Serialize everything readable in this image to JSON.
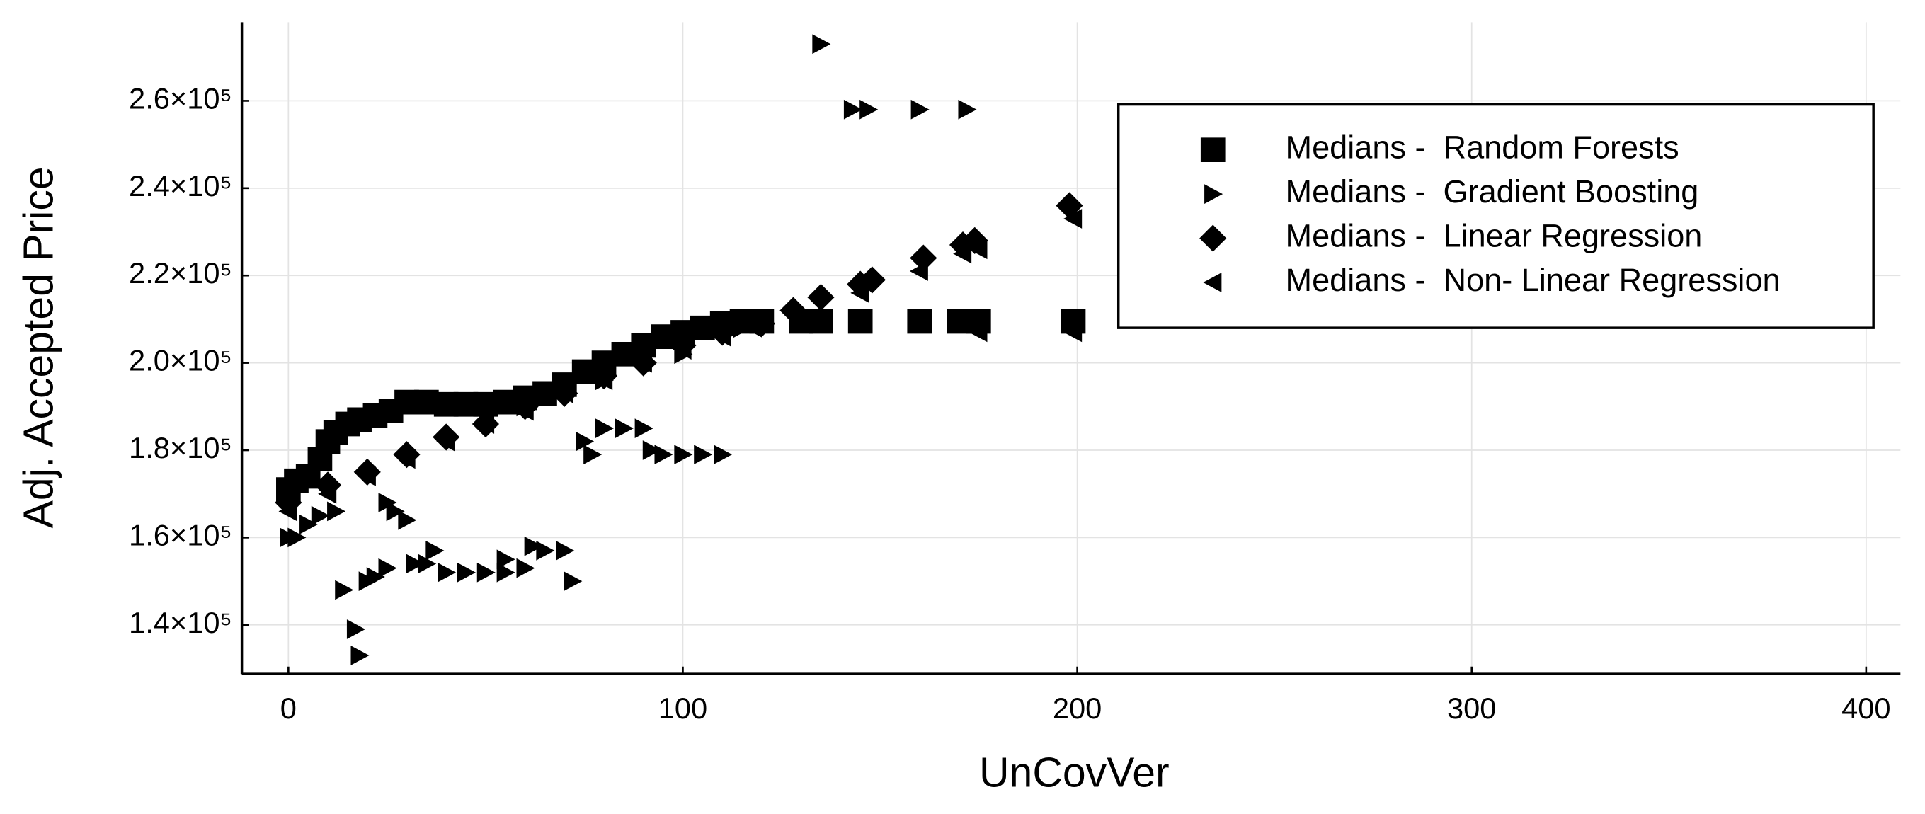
{
  "chart_data": {
    "type": "scatter",
    "xlabel": "UnCovVer",
    "ylabel": "Adj. Accepted Price",
    "xlim": [
      -11.8,
      408.7
    ],
    "xticks": [
      0,
      100,
      200,
      300,
      400
    ],
    "ylim": [
      128760,
      278000
    ],
    "yticks": [
      {
        "value": 140000,
        "label": "1.4×10⁵"
      },
      {
        "value": 160000,
        "label": "1.6×10⁵"
      },
      {
        "value": 180000,
        "label": "1.8×10⁵"
      },
      {
        "value": 200000,
        "label": "2.0×10⁵"
      },
      {
        "value": 220000,
        "label": "2.2×10⁵"
      },
      {
        "value": 240000,
        "label": "2.4×10⁵"
      },
      {
        "value": 260000,
        "label": "2.6×10⁵"
      }
    ],
    "grid": true,
    "legend": "upper right",
    "series": [
      {
        "name": "Medians -  Random Forests",
        "color": "#000000",
        "marker": "square",
        "x": [
          0,
          2,
          5,
          8,
          10,
          12,
          15,
          18,
          22,
          26,
          30,
          35,
          40,
          45,
          50,
          55,
          60,
          65,
          70,
          75,
          80,
          85,
          90,
          95,
          100,
          105,
          110,
          115,
          120,
          130,
          135,
          145,
          160,
          170,
          175,
          199
        ],
        "values": [
          171000,
          173000,
          174000,
          178000,
          182000,
          184000,
          186000,
          187000,
          188000,
          189000,
          191000,
          191000,
          190500,
          190500,
          190500,
          191000,
          192000,
          193000,
          195000,
          198000,
          200000,
          202000,
          204000,
          206000,
          207000,
          208000,
          209000,
          209500,
          209500,
          209500,
          209500,
          209500,
          209500,
          209500,
          209500,
          209500
        ]
      },
      {
        "name": "Medians -  Gradient Boosting",
        "color": "#000000",
        "marker": "triangle-right",
        "x": [
          0,
          2,
          5,
          8,
          12,
          14,
          17,
          18,
          20,
          22,
          25,
          25,
          27,
          30,
          32,
          35,
          37,
          40,
          45,
          50,
          55,
          55,
          60,
          62,
          65,
          70,
          72,
          75,
          77,
          80,
          85,
          90,
          92,
          95,
          100,
          105,
          110,
          60,
          80,
          100,
          115,
          120,
          135,
          143,
          147,
          160,
          172
        ],
        "values": [
          160000,
          160000,
          163000,
          165000,
          166000,
          148000,
          139000,
          133000,
          150000,
          151000,
          153000,
          168000,
          166000,
          164000,
          154000,
          154000,
          157000,
          152000,
          152000,
          152000,
          155000,
          152000,
          153000,
          158000,
          157000,
          157000,
          150000,
          182000,
          179000,
          185000,
          185000,
          185000,
          180000,
          179000,
          179000,
          179000,
          179000,
          190000,
          196000,
          202000,
          208000,
          210000,
          273000,
          258000,
          258000,
          258000,
          258000
        ]
      },
      {
        "name": "Medians -  Linear Regression",
        "color": "#000000",
        "marker": "diamond",
        "x": [
          0,
          10,
          20,
          30,
          40,
          50,
          60,
          70,
          80,
          90,
          100,
          110,
          120,
          128,
          135,
          145,
          148,
          161,
          171,
          174,
          198
        ],
        "values": [
          168000,
          172000,
          175000,
          179000,
          183000,
          186000,
          190000,
          193000,
          197000,
          200000,
          204000,
          207000,
          209000,
          212000,
          215000,
          218000,
          219000,
          224000,
          227000,
          228000,
          236000
        ]
      },
      {
        "name": "Medians -  Non- Linear Regression",
        "color": "#000000",
        "marker": "triangle-left",
        "x": [
          0,
          10,
          20,
          30,
          40,
          50,
          60,
          70,
          80,
          90,
          100,
          110,
          118,
          145,
          160,
          171,
          175,
          175,
          199,
          199
        ],
        "values": [
          166000,
          170000,
          174000,
          178000,
          182000,
          186000,
          189000,
          193000,
          196000,
          200000,
          203000,
          206000,
          208000,
          216000,
          221000,
          225000,
          207000,
          226000,
          233000,
          207000
        ]
      }
    ]
  }
}
